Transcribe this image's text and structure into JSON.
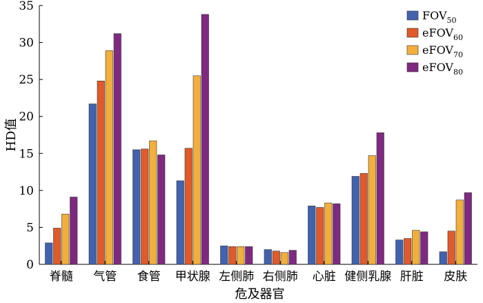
{
  "chart_data": {
    "type": "bar",
    "xlabel": "危及器官",
    "ylabel": "HD值",
    "ylim": [
      0,
      35
    ],
    "yticks": [
      0,
      5,
      10,
      15,
      20,
      25,
      30,
      35
    ],
    "legend_position": "top-right",
    "grid": false,
    "categories": [
      "脊髓",
      "气管",
      "食管",
      "甲状腺",
      "左侧肺",
      "右侧肺",
      "心脏",
      "健侧乳腺",
      "肝脏",
      "皮肤"
    ],
    "series": [
      {
        "name": "FOV",
        "sub": "50",
        "color": "#4262AE",
        "values": [
          2.9,
          21.7,
          15.5,
          11.3,
          2.5,
          2.0,
          7.9,
          11.9,
          3.3,
          1.7
        ]
      },
      {
        "name": "eFOV",
        "sub": "60",
        "color": "#E05A2B",
        "values": [
          4.9,
          24.8,
          15.6,
          15.7,
          2.4,
          1.8,
          7.7,
          12.3,
          3.5,
          4.5
        ]
      },
      {
        "name": "eFOV",
        "sub": "70",
        "color": "#F2AF3C",
        "values": [
          6.8,
          28.9,
          16.7,
          25.5,
          2.4,
          1.6,
          8.3,
          14.7,
          4.6,
          8.7
        ]
      },
      {
        "name": "eFOV",
        "sub": "80",
        "color": "#7F2A80",
        "values": [
          9.1,
          31.2,
          14.8,
          33.8,
          2.4,
          1.9,
          8.2,
          17.8,
          4.4,
          9.7
        ]
      }
    ]
  }
}
